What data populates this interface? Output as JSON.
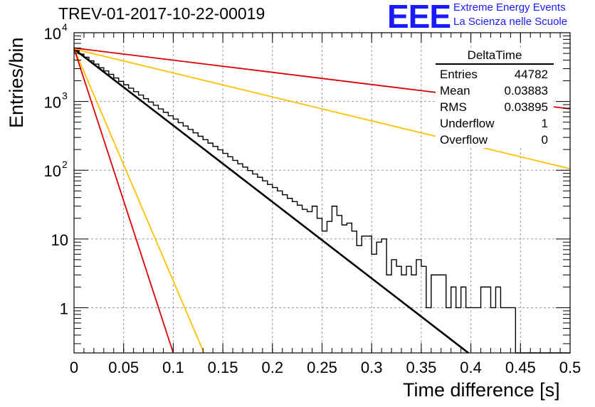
{
  "header": {
    "title": "TREV-01-2017-10-22-00019",
    "logo": "EEE",
    "tagline1": "Extreme Energy Events",
    "tagline2": "La Scienza nelle Scuole"
  },
  "stats_box": {
    "name": "DeltaTime",
    "rows": [
      {
        "label": "Entries",
        "value": "44782"
      },
      {
        "label": "Mean",
        "value": "0.03883"
      },
      {
        "label": "RMS",
        "value": "0.03895"
      },
      {
        "label": "Underflow",
        "value": "1"
      },
      {
        "label": "Overflow",
        "value": "0"
      }
    ]
  },
  "chart_data": {
    "type": "line",
    "title": "TREV-01-2017-10-22-00019",
    "xlabel": "Time difference [s]",
    "ylabel": "Entries/bin",
    "xlim": [
      0,
      0.5
    ],
    "ylim": [
      0.22,
      10000
    ],
    "y_scale": "log",
    "grid": true,
    "x_ticks": [
      "0",
      "0.05",
      "0.1",
      "0.15",
      "0.2",
      "0.25",
      "0.3",
      "0.35",
      "0.4",
      "0.45",
      "0.5"
    ],
    "x_tick_values": [
      0,
      0.05,
      0.1,
      0.15,
      0.2,
      0.25,
      0.3,
      0.35,
      0.4,
      0.45,
      0.5
    ],
    "y_ticks": [
      {
        "value": 1,
        "label": "1"
      },
      {
        "value": 10,
        "label": "10"
      },
      {
        "value": 100,
        "label": "10",
        "exp": "2"
      },
      {
        "value": 1000,
        "label": "10",
        "exp": "3"
      },
      {
        "value": 10000,
        "label": "10",
        "exp": "4"
      }
    ],
    "histogram": {
      "bin_width": 0.005,
      "color": "#000000",
      "counts": [
        5500,
        4900,
        4400,
        3900,
        3500,
        3100,
        2780,
        2480,
        2200,
        1960,
        1750,
        1560,
        1390,
        1240,
        1100,
        980,
        880,
        780,
        695,
        620,
        555,
        492,
        440,
        392,
        350,
        312,
        278,
        248,
        222,
        198,
        176,
        157,
        139,
        124,
        111,
        99,
        88,
        79,
        70,
        62,
        56,
        50,
        44,
        39,
        35,
        31,
        27,
        25,
        22,
        19,
        17,
        15,
        14,
        12,
        11,
        10,
        9,
        8,
        7,
        6,
        5,
        5,
        4,
        4,
        3,
        3,
        3,
        2,
        2,
        2,
        2,
        1,
        1,
        1,
        1,
        1,
        1,
        1,
        1,
        1,
        1,
        1,
        1,
        1,
        1,
        1,
        1,
        1,
        0,
        0,
        0,
        0,
        0,
        0,
        0,
        0,
        0,
        0,
        0,
        0
      ],
      "overrides": {
        "48": 30,
        "49": 20,
        "50": 13,
        "51": 18,
        "52": 30,
        "53": 22,
        "54": 16,
        "55": 17,
        "56": 13,
        "58": 11,
        "59": 11,
        "60": 6,
        "61": 9,
        "62": 10,
        "63": 3,
        "64": 5,
        "65": 4,
        "67": 4,
        "68": 3,
        "69": 5,
        "70": 4,
        "71": 1,
        "72": 3,
        "73": 3,
        "74": 3,
        "76": 2,
        "78": 2,
        "79": 1,
        "82": 2,
        "83": 2,
        "84": 1,
        "85": 2,
        "86": 1,
        "87": 1,
        "88": 1
      }
    },
    "series": [
      {
        "color": "#000000",
        "x": [
          0,
          0.3975
        ],
        "y": [
          5800,
          0.22
        ]
      },
      {
        "color": "#dd0000",
        "x": [
          0,
          0.5
        ],
        "y": [
          6000,
          780
        ]
      },
      {
        "color": "#ffc000",
        "x": [
          0,
          0.5
        ],
        "y": [
          5800,
          105
        ]
      },
      {
        "color": "#ffc000",
        "x": [
          0,
          0.131
        ],
        "y": [
          5900,
          0.22
        ]
      },
      {
        "color": "#dd0000",
        "x": [
          0,
          0.1
        ],
        "y": [
          5900,
          0.22
        ]
      }
    ]
  }
}
